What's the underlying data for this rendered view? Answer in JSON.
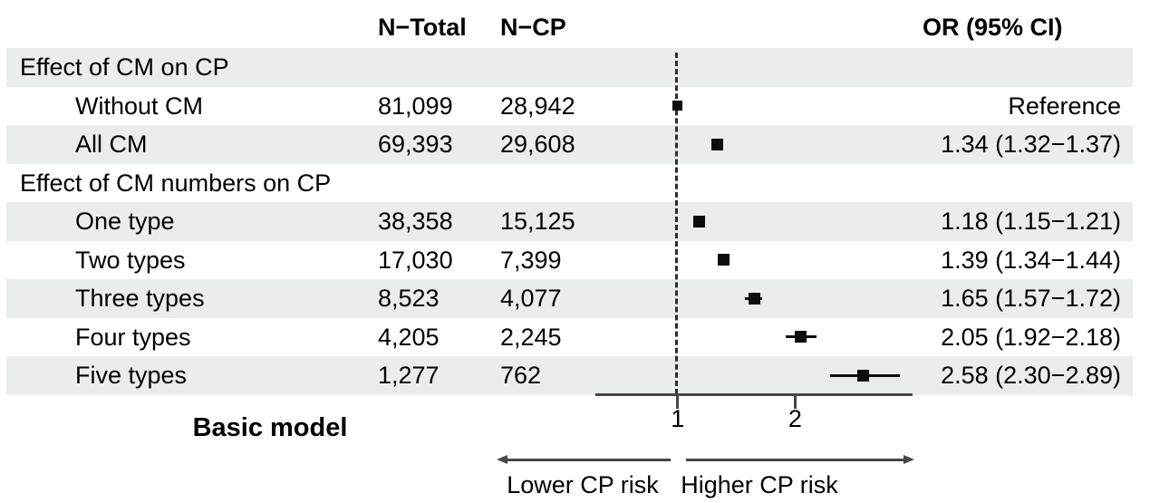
{
  "figure": {
    "kind": "forest-plot"
  },
  "table": {
    "headers": {
      "n_total": "N−Total",
      "n_cp": "N−CP",
      "or_ci": "OR (95% CI)"
    },
    "rows": [
      {
        "label": "Effect of CM on CP",
        "section": true
      },
      {
        "label": "Without CM",
        "n_total": "81,099",
        "n_cp": "28,942",
        "or_text": "Reference",
        "or": 1.0,
        "ref": true
      },
      {
        "label": "All CM",
        "n_total": "69,393",
        "n_cp": "29,608",
        "or_text": "1.34 (1.32−1.37)",
        "or": 1.34,
        "lo": 1.32,
        "hi": 1.37
      },
      {
        "label": "Effect of CM numbers on CP",
        "section": true
      },
      {
        "label": "One type",
        "n_total": "38,358",
        "n_cp": "15,125",
        "or_text": "1.18 (1.15−1.21)",
        "or": 1.18,
        "lo": 1.15,
        "hi": 1.21
      },
      {
        "label": "Two types",
        "n_total": "17,030",
        "n_cp": "7,399",
        "or_text": "1.39 (1.34−1.44)",
        "or": 1.39,
        "lo": 1.34,
        "hi": 1.44
      },
      {
        "label": "Three types",
        "n_total": "8,523",
        "n_cp": "4,077",
        "or_text": "1.65 (1.57−1.72)",
        "or": 1.65,
        "lo": 1.57,
        "hi": 1.72
      },
      {
        "label": "Four types",
        "n_total": "4,205",
        "n_cp": "2,245",
        "or_text": "2.05 (1.92−2.18)",
        "or": 2.05,
        "lo": 1.92,
        "hi": 2.18
      },
      {
        "label": "Five types",
        "n_total": "1,277",
        "n_cp": "762",
        "or_text": "2.58 (2.30−2.89)",
        "or": 2.58,
        "lo": 2.3,
        "hi": 2.89
      }
    ]
  },
  "axis": {
    "tick_values": [
      1,
      2
    ],
    "tick_labels": [
      "1",
      "2"
    ],
    "xlim": [
      0.3,
      3.0
    ],
    "reference_line": 1
  },
  "footer": {
    "model_label": "Basic model",
    "left_arrow_label": "Lower CP risk",
    "right_arrow_label": "Higher CP risk"
  },
  "colors": {
    "stripe": "#e9edec",
    "text": "#000000",
    "marker": "#0d0d0d",
    "axis": "#474747",
    "dashed_reference": "#2e2e2e",
    "background": "#ffffff"
  },
  "chart_data": {
    "type": "scatter",
    "subtype": "forest-plot-horizontal-OR",
    "title": "Basic model",
    "categories": [
      "Without CM",
      "All CM",
      "One type",
      "Two types",
      "Three types",
      "Four types",
      "Five types"
    ],
    "series": [
      {
        "name": "OR",
        "values": [
          1.0,
          1.34,
          1.18,
          1.39,
          1.65,
          2.05,
          2.58
        ]
      },
      {
        "name": "CI_low",
        "values": [
          null,
          1.32,
          1.15,
          1.34,
          1.57,
          1.92,
          2.3
        ]
      },
      {
        "name": "CI_high",
        "values": [
          null,
          1.37,
          1.21,
          1.44,
          1.72,
          2.18,
          2.89
        ]
      }
    ],
    "group_sections": [
      "Effect of CM on CP",
      "Effect of CM numbers on CP"
    ],
    "n_total": [
      81099,
      69393,
      38358,
      17030,
      8523,
      4205,
      1277
    ],
    "n_cp": [
      28942,
      29608,
      15125,
      7399,
      4077,
      2245,
      762
    ],
    "xlabel": "OR (95% CI)",
    "x_ticks": [
      1,
      2
    ],
    "xlim": [
      0.3,
      3.0
    ],
    "reference_line": 1,
    "reference_category": "Without CM",
    "grid": false,
    "legend": false,
    "annotations": [
      "Lower CP risk",
      "Higher CP risk"
    ]
  }
}
